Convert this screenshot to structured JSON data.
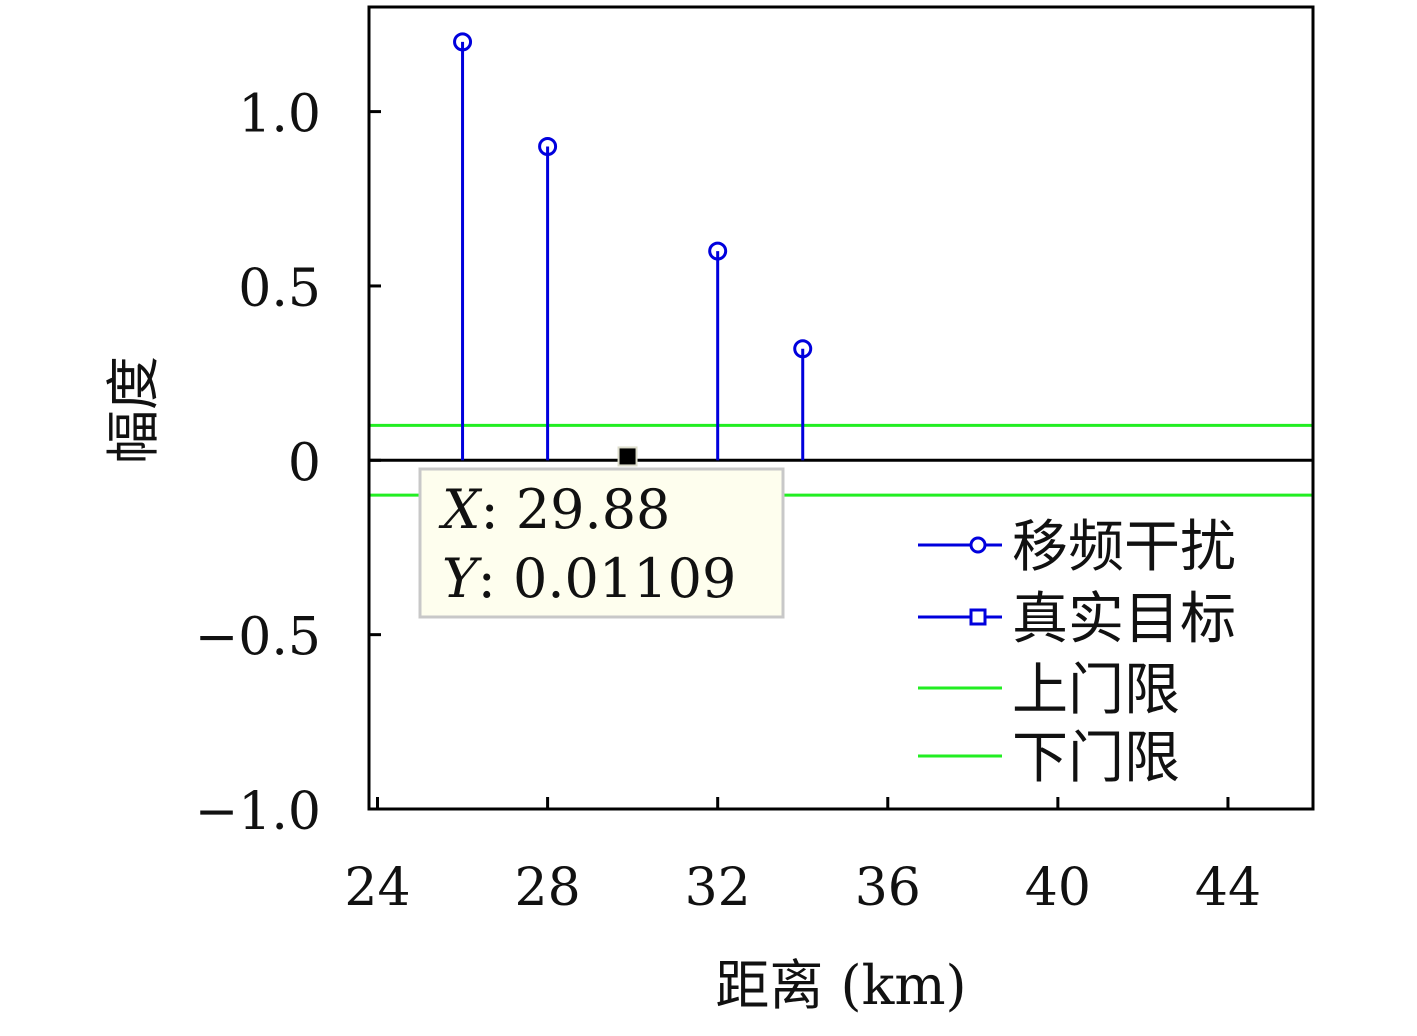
{
  "chart_data": {
    "type": "stem",
    "xlabel": "距离 (km)",
    "ylabel": "幅度",
    "xlim": [
      23.8,
      46.0
    ],
    "ylim": [
      -1.0,
      1.3
    ],
    "xticks": [
      24,
      28,
      32,
      36,
      40,
      44
    ],
    "xtick_labels": [
      "24",
      "28",
      "32",
      "36",
      "40",
      "44"
    ],
    "yticks": [
      -1.0,
      -0.5,
      0,
      0.5,
      1.0
    ],
    "ytick_labels": [
      "−1.0",
      "−0.5",
      "0",
      "0.5",
      "1.0"
    ],
    "grid": false,
    "legend_position": "lower-right",
    "series": [
      {
        "name": "移频干扰",
        "kind": "stem",
        "marker": "circle",
        "color": "#0000dd",
        "x": [
          26,
          28,
          32,
          34
        ],
        "y": [
          1.2,
          0.9,
          0.6,
          0.32
        ]
      },
      {
        "name": "真实目标",
        "kind": "stem",
        "marker": "square",
        "color": "#0000dd",
        "x": [],
        "y": []
      },
      {
        "name": "上门限",
        "kind": "hline",
        "color": "#22ee22",
        "y": 0.1
      },
      {
        "name": "下门限",
        "kind": "hline",
        "color": "#22ee22",
        "y": -0.1
      }
    ],
    "zero_line": {
      "y": 0,
      "color": "#000000"
    },
    "datatip": {
      "x": 29.88,
      "y": 0.01109,
      "x_label": "X",
      "y_label": "Y",
      "x_text": "29.88",
      "y_text": "0.01109"
    }
  }
}
